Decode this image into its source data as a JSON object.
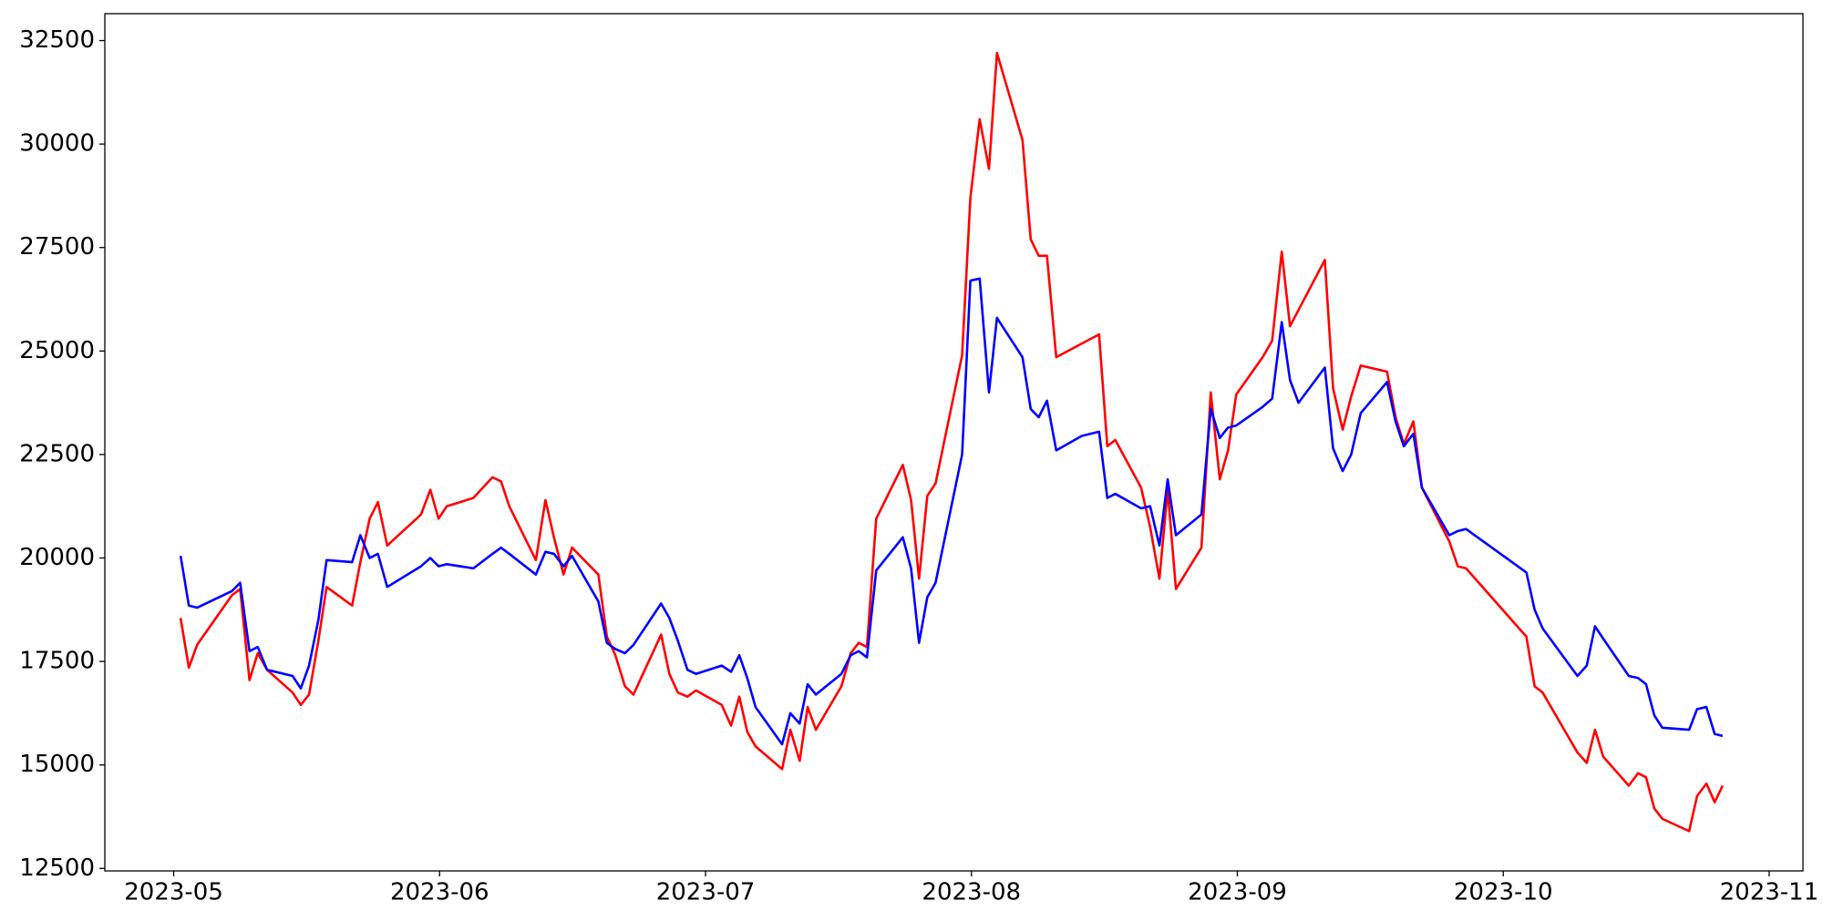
{
  "chart_data": {
    "type": "line",
    "x": [
      5.026,
      5.057,
      5.088,
      5.219,
      5.25,
      5.285,
      5.316,
      5.351,
      5.447,
      5.478,
      5.509,
      5.544,
      5.575,
      5.671,
      5.702,
      5.737,
      5.768,
      5.803,
      5.93,
      5.965,
      5.996,
      6.027,
      6.127,
      6.199,
      6.231,
      6.262,
      6.362,
      6.398,
      6.43,
      6.466,
      6.498,
      6.597,
      6.629,
      6.661,
      6.697,
      6.729,
      6.833,
      6.864,
      6.896,
      6.932,
      6.964,
      7.061,
      7.096,
      7.127,
      7.157,
      7.188,
      7.288,
      7.319,
      7.354,
      7.384,
      7.415,
      7.511,
      7.546,
      7.576,
      7.607,
      7.642,
      7.742,
      7.773,
      7.803,
      7.834,
      7.865,
      7.965,
      7.996,
      8.031,
      8.066,
      8.096,
      8.192,
      8.223,
      8.253,
      8.284,
      8.319,
      8.415,
      8.48,
      8.511,
      8.541,
      8.638,
      8.672,
      8.707,
      8.738,
      8.769,
      8.865,
      8.9,
      8.934,
      8.965,
      8.996,
      9.095,
      9.131,
      9.167,
      9.198,
      9.23,
      9.329,
      9.36,
      9.396,
      9.428,
      9.464,
      9.563,
      9.595,
      9.626,
      9.662,
      9.694,
      9.797,
      9.829,
      9.86,
      10.087,
      10.118,
      10.148,
      10.279,
      10.314,
      10.345,
      10.376,
      10.472,
      10.507,
      10.537,
      10.568,
      10.598,
      10.699,
      10.729,
      10.764,
      10.795,
      10.825
    ],
    "series": [
      {
        "color": "#ff0000",
        "values": [
          18550,
          17350,
          17900,
          19100,
          19250,
          17050,
          17700,
          17300,
          16750,
          16450,
          16700,
          18000,
          19300,
          18850,
          19900,
          20950,
          21350,
          20300,
          21050,
          21650,
          20950,
          21250,
          21450,
          21950,
          21850,
          21250,
          19950,
          21400,
          20500,
          19600,
          20250,
          19600,
          18100,
          17650,
          16900,
          16700,
          18150,
          17200,
          16750,
          16650,
          16800,
          16450,
          15950,
          16650,
          15800,
          15450,
          14900,
          15850,
          15100,
          16400,
          15850,
          16900,
          17700,
          17950,
          17850,
          20950,
          22250,
          21400,
          19500,
          21500,
          21800,
          24900,
          28700,
          30600,
          29400,
          32200,
          30100,
          27700,
          27300,
          27300,
          24850,
          25180,
          25400,
          22700,
          22850,
          21700,
          20750,
          19500,
          21650,
          19250,
          20250,
          24000,
          21900,
          22600,
          23950,
          24850,
          25250,
          27400,
          25600,
          25990,
          27200,
          24100,
          23100,
          23900,
          24650,
          24500,
          23400,
          22750,
          23300,
          21700,
          20400,
          19800,
          19750,
          18100,
          16900,
          16750,
          15300,
          15050,
          15850,
          15200,
          14500,
          14800,
          14700,
          13950,
          13700,
          13400,
          14250,
          14550,
          14100,
          14500
        ]
      },
      {
        "color": "#0000ff",
        "values": [
          20050,
          18850,
          18800,
          19200,
          19400,
          17750,
          17850,
          17300,
          17150,
          16850,
          17400,
          18500,
          19950,
          19900,
          20550,
          20000,
          20100,
          19300,
          19800,
          20000,
          19800,
          19850,
          19750,
          20100,
          20250,
          20100,
          19600,
          20150,
          20100,
          19800,
          20050,
          18950,
          17950,
          17800,
          17700,
          17900,
          18900,
          18550,
          18000,
          17300,
          17200,
          17400,
          17250,
          17650,
          17100,
          16400,
          15500,
          16250,
          16000,
          16950,
          16700,
          17200,
          17650,
          17750,
          17600,
          19700,
          20500,
          19750,
          17950,
          19050,
          19400,
          22500,
          26700,
          26750,
          24000,
          25800,
          24850,
          23600,
          23400,
          23800,
          22600,
          22950,
          23050,
          21450,
          21550,
          21200,
          21250,
          20300,
          21900,
          20550,
          21050,
          23600,
          22900,
          23150,
          23200,
          23650,
          23850,
          25700,
          24300,
          23750,
          24600,
          22650,
          22100,
          22500,
          23500,
          24250,
          23300,
          22700,
          23000,
          21700,
          20550,
          20650,
          20700,
          19650,
          18750,
          18300,
          17150,
          17400,
          18350,
          18050,
          17150,
          17100,
          16950,
          16200,
          15900,
          15850,
          16350,
          16400,
          15750,
          15700
        ]
      }
    ],
    "xlim": [
      4.741,
      11.127
    ],
    "xticks": [
      {
        "value": 5,
        "label": "2023-05"
      },
      {
        "value": 6,
        "label": "2023-06"
      },
      {
        "value": 7,
        "label": "2023-07"
      },
      {
        "value": 8,
        "label": "2023-08"
      },
      {
        "value": 9,
        "label": "2023-09"
      },
      {
        "value": 10,
        "label": "2023-10"
      },
      {
        "value": 11,
        "label": "2023-11"
      }
    ],
    "ylim": [
      12440,
      33150
    ],
    "yticks": [
      12500,
      15000,
      17500,
      20000,
      22500,
      25000,
      27500,
      30000,
      32500
    ],
    "grid": false
  }
}
